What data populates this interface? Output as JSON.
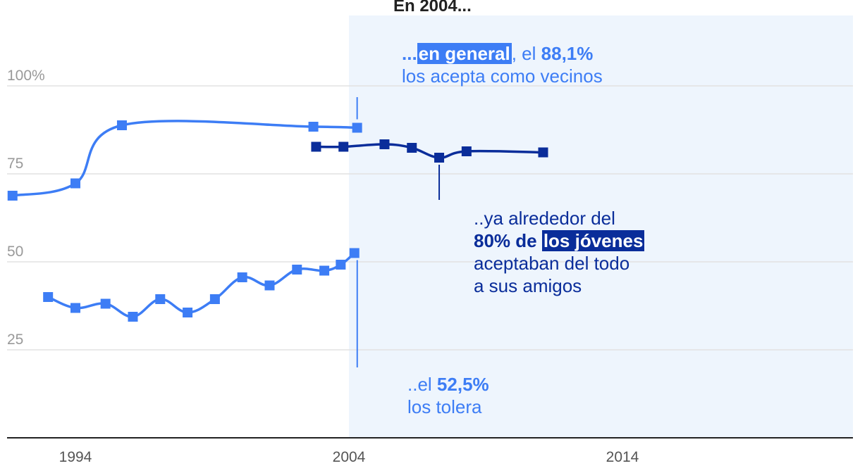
{
  "chart_data": {
    "type": "line",
    "title": "En 2004...",
    "xlabel": "",
    "ylabel": "",
    "x_ticks": [
      "1994",
      "2004",
      "2014"
    ],
    "y_ticks": [
      "100%",
      "75",
      "50",
      "25"
    ],
    "xlim": [
      1991.5,
      2022.7
    ],
    "ylim": [
      0,
      110
    ],
    "grid": true,
    "shaded_region": [
      2004,
      2022.7
    ],
    "series": [
      {
        "color": "#3d7df5",
        "points": [
          [
            1991.7,
            68.8
          ],
          [
            1994,
            72.3
          ],
          [
            1995.7,
            88.8
          ],
          [
            2002.7,
            88.4
          ],
          [
            2004.3,
            88.1
          ]
        ]
      },
      {
        "color": "#0a2d9a",
        "points": [
          [
            2002.8,
            82.7
          ],
          [
            2003.8,
            82.7
          ],
          [
            2005.3,
            83.4
          ],
          [
            2006.3,
            82.4
          ],
          [
            2007.3,
            79.6
          ],
          [
            2008.3,
            81.4
          ],
          [
            2011.1,
            81.1
          ]
        ]
      },
      {
        "color": "#3d7df5",
        "points": [
          [
            1993.0,
            40.0
          ],
          [
            1994.0,
            36.9
          ],
          [
            1995.1,
            38.1
          ],
          [
            1996.1,
            34.4
          ],
          [
            1997.1,
            39.4
          ],
          [
            1998.1,
            35.6
          ],
          [
            1999.1,
            39.4
          ],
          [
            2000.1,
            45.6
          ],
          [
            2001.1,
            43.3
          ],
          [
            2002.1,
            47.8
          ],
          [
            2003.1,
            47.5
          ],
          [
            2003.7,
            49.2
          ],
          [
            2004.2,
            52.5
          ]
        ]
      }
    ],
    "annotations": {
      "general": {
        "prefix": "...",
        "highlight": "en general",
        "middle": ", el ",
        "value": "88,1%",
        "line2": "los acepta como vecinos"
      },
      "jovenes": {
        "line1": "..ya alrededor del",
        "value": "80% de ",
        "highlight": "los jóvenes",
        "line3": "aceptaban del todo",
        "line4": "a sus amigos"
      },
      "tolera": {
        "prefix": "..el ",
        "value": "52,5%",
        "line2": "los tolera"
      }
    }
  }
}
